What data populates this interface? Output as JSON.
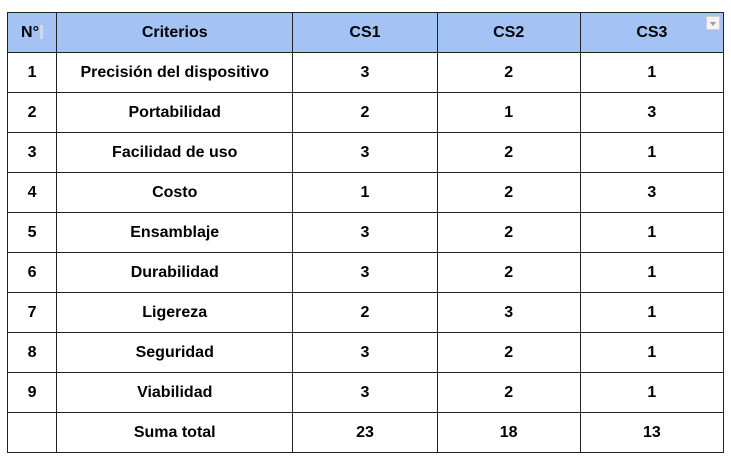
{
  "table": {
    "headers": {
      "n": "N°",
      "criteria": "Criterios",
      "cs1": "CS1",
      "cs2": "CS2",
      "cs3": "CS3"
    },
    "rows": [
      {
        "n": "1",
        "criteria": "Precisión del dispositivo",
        "cs1": "3",
        "cs2": "2",
        "cs3": "1"
      },
      {
        "n": "2",
        "criteria": "Portabilidad",
        "cs1": "2",
        "cs2": "1",
        "cs3": "3"
      },
      {
        "n": "3",
        "criteria": "Facilidad de uso",
        "cs1": "3",
        "cs2": "2",
        "cs3": "1"
      },
      {
        "n": "4",
        "criteria": "Costo",
        "cs1": "1",
        "cs2": "2",
        "cs3": "3"
      },
      {
        "n": "5",
        "criteria": "Ensamblaje",
        "cs1": "3",
        "cs2": "2",
        "cs3": "1"
      },
      {
        "n": "6",
        "criteria": "Durabilidad",
        "cs1": "3",
        "cs2": "2",
        "cs3": "1"
      },
      {
        "n": "7",
        "criteria": "Ligereza",
        "cs1": "2",
        "cs2": "3",
        "cs3": "1"
      },
      {
        "n": "8",
        "criteria": "Seguridad",
        "cs1": "3",
        "cs2": "2",
        "cs3": "1"
      },
      {
        "n": "9",
        "criteria": "Viabilidad",
        "cs1": "3",
        "cs2": "2",
        "cs3": "1"
      }
    ],
    "total": {
      "n": "",
      "criteria": "Suma total",
      "cs1": "23",
      "cs2": "18",
      "cs3": "13"
    }
  },
  "colors": {
    "header_bg": "#a4c2f4",
    "border": "#222222"
  },
  "icons": {
    "filter": "filter-dropdown-icon"
  }
}
